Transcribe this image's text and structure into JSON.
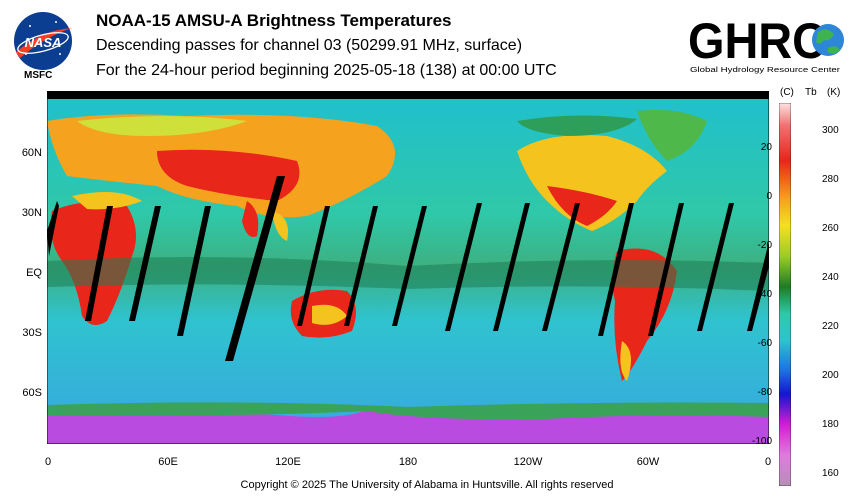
{
  "header": {
    "title": "NOAA-15 AMSU-A Brightness Temperatures",
    "subtitle": "Descending passes for channel 03 (50299.91 MHz, surface)",
    "period": "For the 24-hour period beginning 2025-05-18 (138) at 00:00 UTC"
  },
  "logos": {
    "nasa_text": "NASA",
    "msfc_text": "MSFC",
    "ghrc_text": "GHRC",
    "ghrc_subtext": "Global Hydrology Resource Center"
  },
  "map": {
    "lat_labels": [
      "60N",
      "30N",
      "EQ",
      "30S",
      "60S"
    ],
    "lon_labels": [
      "0",
      "60E",
      "120E",
      "180",
      "120W",
      "60W",
      "0"
    ],
    "ocean_color": "#2fc3cf",
    "land_hot_color": "#e8261a",
    "land_warm_color": "#f5c31e",
    "polar_color": "#b94be0",
    "gap_color": "#000000"
  },
  "colorbar": {
    "header_c": "(C)",
    "header_tb": "Tb",
    "header_k": "(K)",
    "celsius_ticks": [
      "20",
      "0",
      "-20",
      "-40",
      "-60",
      "-80",
      "-100"
    ],
    "kelvin_ticks": [
      "300",
      "280",
      "260",
      "240",
      "220",
      "200",
      "180",
      "160"
    ]
  },
  "footer": {
    "copyright": "Copyright © 2025 The University of Alabama in Huntsville.  All rights reserved"
  }
}
